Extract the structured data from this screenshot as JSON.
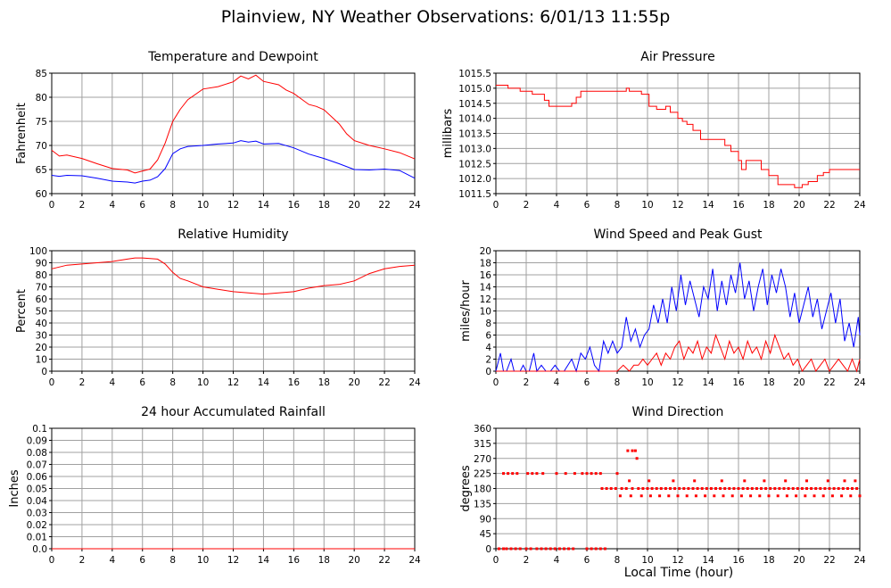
{
  "page": {
    "title": "Plainview, NY Weather Observations: 6/01/13 11:55p",
    "xlabel": "Local Time (hour)"
  },
  "colors": {
    "red": "#ff0000",
    "blue": "#0000ff",
    "grid": "#a0a0a0"
  },
  "chart_data": [
    {
      "id": "temp",
      "type": "line",
      "title": "Temperature and Dewpoint",
      "ylabel": "Fahrenheit",
      "xlim": [
        0,
        24
      ],
      "ylim": [
        60,
        85
      ],
      "xticks": [
        0,
        2,
        4,
        6,
        8,
        10,
        12,
        14,
        16,
        18,
        20,
        22,
        24
      ],
      "yticks": [
        60,
        65,
        70,
        75,
        80,
        85
      ],
      "grid": true,
      "series": [
        {
          "color": "red",
          "x": [
            0,
            0.5,
            1,
            2,
            3,
            4,
            5,
            5.5,
            6,
            6.5,
            7,
            7.5,
            8,
            8.5,
            9,
            10,
            11,
            12,
            12.5,
            13,
            13.5,
            14,
            15,
            15.5,
            16,
            17,
            17.5,
            18,
            19,
            19.5,
            20,
            21,
            22,
            23,
            24
          ],
          "y": [
            69,
            67.8,
            68,
            67.3,
            66.2,
            65.2,
            64.9,
            64.3,
            64.7,
            65.1,
            67,
            70.5,
            75,
            77.5,
            79.5,
            81.7,
            82.2,
            83.2,
            84.4,
            83.8,
            84.6,
            83.3,
            82.6,
            81.5,
            80.8,
            78.5,
            78.1,
            77.4,
            74.5,
            72.4,
            71,
            70,
            69.3,
            68.5,
            67.2
          ]
        },
        {
          "color": "blue",
          "x": [
            0,
            0.5,
            1,
            2,
            3,
            4,
            5,
            5.5,
            6,
            6.5,
            7,
            7.5,
            8,
            8.5,
            9,
            10,
            11,
            12,
            12.5,
            13,
            13.5,
            14,
            15,
            16,
            17,
            18,
            19,
            20,
            21,
            22,
            23,
            24
          ],
          "y": [
            63.8,
            63.6,
            63.8,
            63.7,
            63.2,
            62.6,
            62.4,
            62.2,
            62.6,
            62.8,
            63.5,
            65.2,
            68.3,
            69.3,
            69.8,
            70,
            70.3,
            70.5,
            71,
            70.7,
            70.9,
            70.3,
            70.4,
            69.5,
            68.2,
            67.3,
            66.2,
            65,
            64.9,
            65.1,
            64.8,
            63.2
          ]
        }
      ]
    },
    {
      "id": "pressure",
      "type": "line",
      "title": "Air Pressure",
      "ylabel": "millibars",
      "xlim": [
        0,
        24
      ],
      "ylim": [
        1011.5,
        1015.5
      ],
      "xticks": [
        0,
        2,
        4,
        6,
        8,
        10,
        12,
        14,
        16,
        18,
        20,
        22,
        24
      ],
      "yticks": [
        "1011.5",
        "1012.0",
        "1012.5",
        "1013.0",
        "1013.5",
        "1014.0",
        "1014.5",
        "1015.0",
        "1015.5"
      ],
      "grid": true,
      "series": [
        {
          "color": "red",
          "step": true,
          "x": [
            0,
            0.8,
            1.6,
            2.4,
            3.2,
            3.5,
            5.0,
            5.3,
            5.6,
            8.6,
            8.8,
            9.6,
            10.1,
            10.6,
            11.2,
            11.5,
            12.0,
            12.3,
            12.6,
            13.0,
            13.5,
            14.0,
            15.1,
            15.5,
            16.0,
            16.2,
            16.5,
            17.0,
            17.5,
            18.0,
            18.6,
            19.0,
            19.4,
            19.7,
            20.2,
            20.6,
            21.2,
            21.6,
            22.0,
            23.2,
            24
          ],
          "y": [
            1015.1,
            1015.0,
            1014.9,
            1014.8,
            1014.6,
            1014.4,
            1014.5,
            1014.7,
            1014.9,
            1015.0,
            1014.9,
            1014.8,
            1014.4,
            1014.3,
            1014.4,
            1014.2,
            1014.0,
            1013.9,
            1013.8,
            1013.6,
            1013.3,
            1013.3,
            1013.1,
            1012.9,
            1012.6,
            1012.3,
            1012.6,
            1012.6,
            1012.3,
            1012.1,
            1011.8,
            1011.8,
            1011.8,
            1011.7,
            1011.8,
            1011.9,
            1012.1,
            1012.2,
            1012.3,
            1012.3,
            1012.3
          ]
        }
      ]
    },
    {
      "id": "humidity",
      "type": "line",
      "title": "Relative Humidity",
      "ylabel": "Percent",
      "xlim": [
        0,
        24
      ],
      "ylim": [
        0,
        100
      ],
      "xticks": [
        0,
        2,
        4,
        6,
        8,
        10,
        12,
        14,
        16,
        18,
        20,
        22,
        24
      ],
      "yticks": [
        0,
        10,
        20,
        30,
        40,
        50,
        60,
        70,
        80,
        90,
        100
      ],
      "grid": true,
      "series": [
        {
          "color": "red",
          "x": [
            0,
            1,
            2,
            3,
            4,
            5,
            5.5,
            6,
            7,
            7.5,
            8,
            8.5,
            9,
            10,
            11,
            12,
            13,
            14,
            15,
            16,
            17,
            18,
            19,
            20,
            21,
            22,
            23,
            24
          ],
          "y": [
            85,
            88,
            89,
            90,
            91,
            93,
            94,
            94,
            93,
            89,
            82,
            77,
            75,
            70,
            68,
            66,
            65,
            64,
            65,
            66,
            69,
            71,
            72,
            75,
            81,
            85,
            87,
            88
          ]
        }
      ]
    },
    {
      "id": "wind",
      "type": "line",
      "title": "Wind Speed and Peak Gust",
      "ylabel": "miles/hour",
      "xlim": [
        0,
        24
      ],
      "ylim": [
        0,
        20
      ],
      "xticks": [
        0,
        2,
        4,
        6,
        8,
        10,
        12,
        14,
        16,
        18,
        20,
        22,
        24
      ],
      "yticks": [
        0,
        2,
        4,
        6,
        8,
        10,
        12,
        14,
        16,
        18,
        20
      ],
      "grid": true,
      "series": [
        {
          "color": "blue",
          "x": [
            0,
            0.3,
            0.5,
            0.7,
            1.0,
            1.2,
            1.4,
            1.6,
            1.8,
            2.0,
            2.2,
            2.5,
            2.7,
            3.0,
            3.3,
            3.6,
            3.9,
            4.2,
            4.5,
            5.0,
            5.3,
            5.6,
            5.9,
            6.2,
            6.5,
            6.8,
            7.1,
            7.4,
            7.7,
            8.0,
            8.3,
            8.6,
            8.9,
            9.2,
            9.5,
            9.8,
            10.1,
            10.4,
            10.7,
            11.0,
            11.3,
            11.6,
            11.9,
            12.2,
            12.5,
            12.8,
            13.1,
            13.4,
            13.7,
            14.0,
            14.3,
            14.6,
            14.9,
            15.2,
            15.5,
            15.8,
            16.1,
            16.4,
            16.7,
            17.0,
            17.3,
            17.6,
            17.9,
            18.2,
            18.5,
            18.8,
            19.1,
            19.4,
            19.7,
            20.0,
            20.3,
            20.6,
            20.9,
            21.2,
            21.5,
            21.8,
            22.1,
            22.4,
            22.7,
            23.0,
            23.3,
            23.6,
            23.9,
            24
          ],
          "y": [
            0,
            3,
            0,
            0,
            2,
            0,
            0,
            0,
            1,
            0,
            0,
            3,
            0,
            1,
            0,
            0,
            1,
            0,
            0,
            2,
            0,
            3,
            2,
            4,
            1,
            0,
            5,
            3,
            5,
            3,
            4,
            9,
            5,
            7,
            4,
            6,
            7,
            11,
            8,
            12,
            8,
            14,
            10,
            16,
            11,
            15,
            12,
            9,
            14,
            12,
            17,
            10,
            15,
            11,
            16,
            13,
            18,
            12,
            15,
            10,
            14,
            17,
            11,
            16,
            13,
            17,
            14,
            9,
            13,
            8,
            11,
            14,
            9,
            12,
            7,
            10,
            13,
            8,
            12,
            5,
            8,
            4,
            9,
            6
          ]
        },
        {
          "color": "red",
          "x": [
            0,
            6.8,
            7.2,
            8.0,
            8.4,
            8.8,
            9.1,
            9.4,
            9.7,
            10.0,
            10.3,
            10.6,
            10.9,
            11.2,
            11.5,
            11.8,
            12.1,
            12.4,
            12.7,
            13.0,
            13.3,
            13.6,
            13.9,
            14.2,
            14.5,
            14.8,
            15.1,
            15.4,
            15.7,
            16.0,
            16.3,
            16.6,
            16.9,
            17.2,
            17.5,
            17.8,
            18.1,
            18.4,
            18.7,
            19.0,
            19.3,
            19.6,
            19.9,
            20.2,
            20.5,
            20.8,
            21.1,
            21.4,
            21.7,
            22.0,
            22.3,
            22.6,
            22.9,
            23.2,
            23.5,
            23.8,
            24
          ],
          "y": [
            0,
            0,
            0,
            0,
            1,
            0,
            1,
            1,
            2,
            1,
            2,
            3,
            1,
            3,
            2,
            4,
            5,
            2,
            4,
            3,
            5,
            2,
            4,
            3,
            6,
            4,
            2,
            5,
            3,
            4,
            2,
            5,
            3,
            4,
            2,
            5,
            3,
            6,
            4,
            2,
            3,
            1,
            2,
            0,
            1,
            2,
            0,
            1,
            2,
            0,
            1,
            2,
            1,
            0,
            2,
            0,
            2
          ]
        }
      ]
    },
    {
      "id": "rain",
      "type": "line",
      "title": "24 hour Accumulated Rainfall",
      "ylabel": "Inches",
      "xlim": [
        0,
        24
      ],
      "ylim": [
        0,
        0.1
      ],
      "xticks": [
        0,
        2,
        4,
        6,
        8,
        10,
        12,
        14,
        16,
        18,
        20,
        22,
        24
      ],
      "yticks": [
        "0.0",
        "0.01",
        "0.02",
        "0.03",
        "0.04",
        "0.05",
        "0.06",
        "0.07",
        "0.08",
        "0.09",
        "0.1"
      ],
      "grid": true,
      "series": [
        {
          "color": "red",
          "x": [
            0,
            24
          ],
          "y": [
            0,
            0
          ]
        }
      ]
    },
    {
      "id": "direction",
      "type": "scatter",
      "title": "Wind Direction",
      "ylabel": "degrees",
      "xlim": [
        0,
        24
      ],
      "ylim": [
        0,
        360
      ],
      "xticks": [
        0,
        2,
        4,
        6,
        8,
        10,
        12,
        14,
        16,
        18,
        20,
        22,
        24
      ],
      "yticks": [
        0,
        45,
        90,
        135,
        180,
        225,
        270,
        315,
        360
      ],
      "grid": true,
      "series": [
        {
          "color": "red",
          "x": [
            0.2,
            0.5,
            0.7,
            1.0,
            1.3,
            1.6,
            2.0,
            2.3,
            2.7,
            3.0,
            3.3,
            3.6,
            3.9,
            4.2,
            4.5,
            4.8,
            5.1,
            6.0,
            6.3,
            6.6,
            6.9,
            7.2,
            0.5,
            0.8,
            1.1,
            1.4,
            2.1,
            2.4,
            2.7,
            3.1,
            4.0,
            4.6,
            5.2,
            5.7,
            6.0,
            6.3,
            6.6,
            6.9,
            8.0,
            8.7,
            9.0,
            9.2,
            9.3,
            7.0,
            7.3,
            7.6,
            7.9,
            8.3,
            8.6,
            9.0,
            9.4,
            9.7,
            10.0,
            10.3,
            10.6,
            10.9,
            11.2,
            11.5,
            11.8,
            12.1,
            12.4,
            12.7,
            13.0,
            13.3,
            13.6,
            13.9,
            14.2,
            14.5,
            14.8,
            15.1,
            15.4,
            15.7,
            16.0,
            16.3,
            16.6,
            16.9,
            17.2,
            17.5,
            17.8,
            18.1,
            18.4,
            18.7,
            19.0,
            19.3,
            19.6,
            19.9,
            20.2,
            20.5,
            20.8,
            21.1,
            21.4,
            21.7,
            22.0,
            22.3,
            22.6,
            22.9,
            23.2,
            23.5,
            23.8,
            8.2,
            8.9,
            9.6,
            10.2,
            10.8,
            11.4,
            12.0,
            12.6,
            13.2,
            13.8,
            14.4,
            15.0,
            15.6,
            16.2,
            16.8,
            17.4,
            18.0,
            18.6,
            19.2,
            19.8,
            20.4,
            21.0,
            21.6,
            22.2,
            22.8,
            23.4,
            24.0,
            8.8,
            10.1,
            11.7,
            13.1,
            14.9,
            16.4,
            17.7,
            19.1,
            20.5,
            21.9,
            23.0,
            23.7
          ],
          "y": [
            0,
            0,
            0,
            0,
            0,
            0,
            0,
            0,
            0,
            0,
            0,
            0,
            0,
            0,
            0,
            0,
            0,
            0,
            0,
            0,
            0,
            0,
            225,
            225,
            225,
            225,
            225,
            225,
            225,
            225,
            225,
            225,
            225,
            225,
            225,
            225,
            225,
            225,
            225,
            293,
            293,
            293,
            270,
            180,
            180,
            180,
            180,
            180,
            180,
            180,
            180,
            180,
            180,
            180,
            180,
            180,
            180,
            180,
            180,
            180,
            180,
            180,
            180,
            180,
            180,
            180,
            180,
            180,
            180,
            180,
            180,
            180,
            180,
            180,
            180,
            180,
            180,
            180,
            180,
            180,
            180,
            180,
            180,
            180,
            180,
            180,
            180,
            180,
            180,
            180,
            180,
            180,
            180,
            180,
            180,
            180,
            180,
            180,
            180,
            158,
            158,
            158,
            158,
            158,
            158,
            158,
            158,
            158,
            158,
            158,
            158,
            158,
            158,
            158,
            158,
            158,
            158,
            158,
            158,
            158,
            158,
            158,
            158,
            158,
            158,
            158,
            203,
            203,
            203,
            203,
            203,
            203,
            203,
            203,
            203,
            203,
            203,
            203
          ]
        }
      ]
    }
  ]
}
